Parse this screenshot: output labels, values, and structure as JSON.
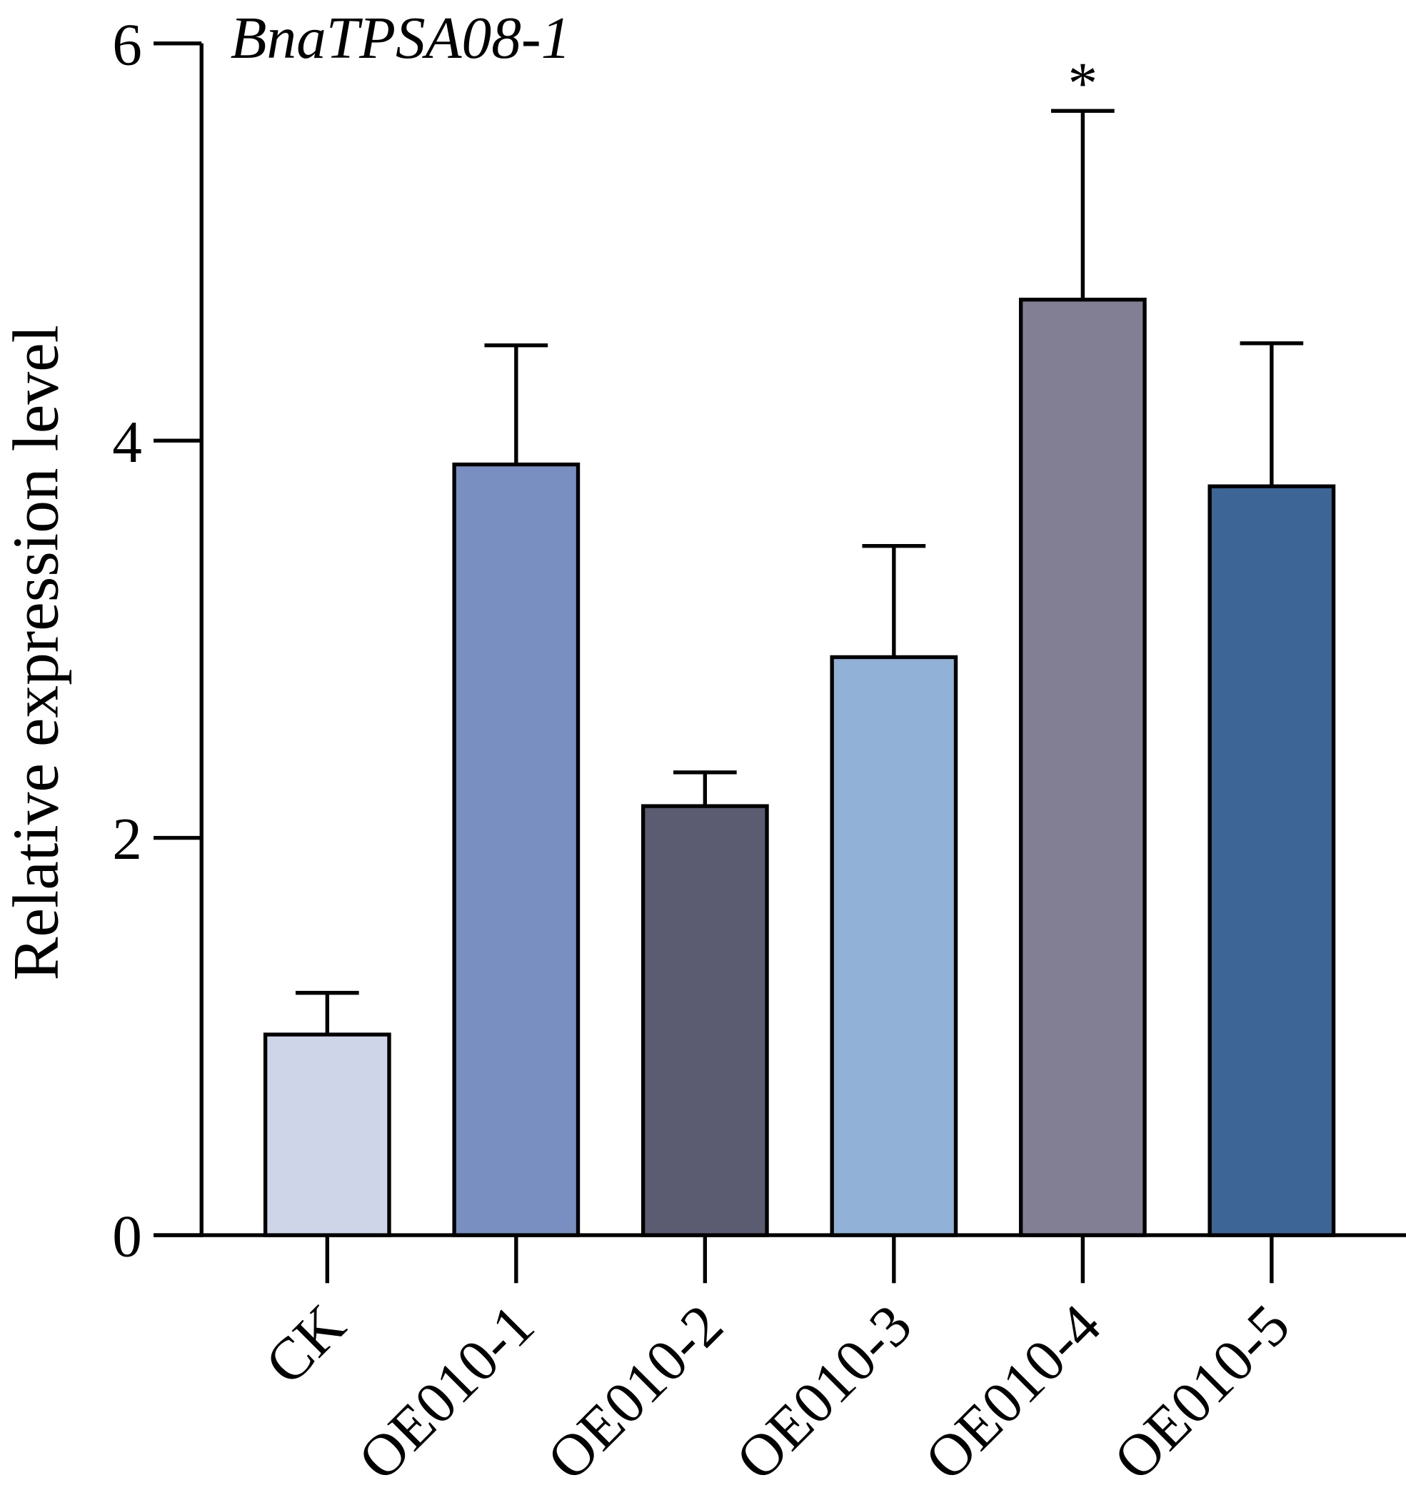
{
  "chart_data": {
    "type": "bar",
    "title": "BnaTPSA08-1",
    "xlabel": "",
    "ylabel": "Relative expression level",
    "ylim": [
      0,
      6
    ],
    "yticks": [
      0,
      2,
      4,
      6
    ],
    "grid": false,
    "categories": [
      "CK",
      "OE010-1",
      "OE010-2",
      "OE010-3",
      "OE010-4",
      "OE010-5"
    ],
    "values": [
      1.01,
      3.88,
      2.16,
      2.91,
      4.71,
      3.77
    ],
    "errors": [
      0.21,
      0.6,
      0.17,
      0.56,
      0.95,
      0.72
    ],
    "annotations": [
      "",
      "",
      "",
      "",
      "*",
      ""
    ],
    "colors": [
      "#cfd5e8",
      "#7a8fc1",
      "#5b5c72",
      "#92b1d6",
      "#827e93",
      "#3d6696"
    ]
  }
}
